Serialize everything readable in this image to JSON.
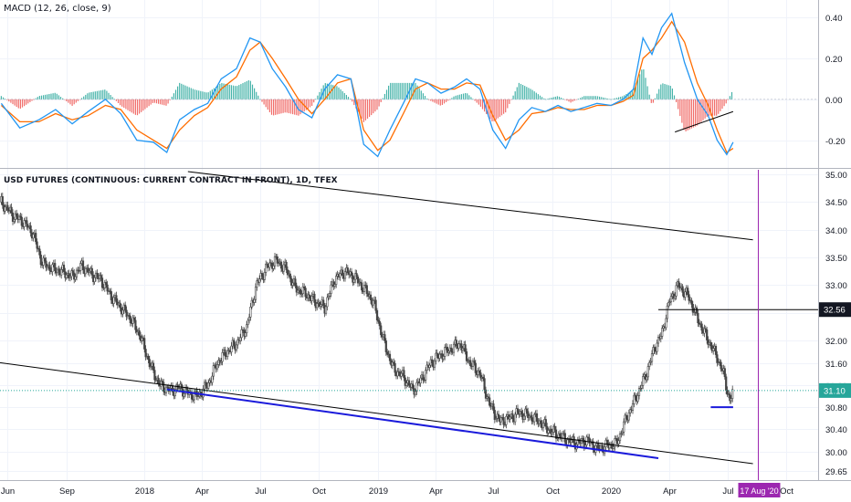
{
  "macd_panel": {
    "title": "MACD (12, 26, close, 9)"
  },
  "price_panel": {
    "title": "USD FUTURES (CONTINUOUS: CURRENT CONTRACT IN FRONT), 1D, TFEX"
  },
  "colors": {
    "macd_line": "#2196f3",
    "signal_line": "#ff6d00",
    "hist_pos": "#26a69a",
    "hist_neg": "#ef5350",
    "candle": "#444444",
    "channel": "#1a1adb",
    "trendline": "#000000",
    "date_marker": "#9c27b0",
    "last_price_line": "#26a69a",
    "last_price_bg": "#26a69a",
    "level_bg": "#131722"
  },
  "chart_data": [
    {
      "type": "line",
      "title": "MACD (12, 26, close, 9)",
      "x_range": [
        "2017-05-20",
        "2020-11-20"
      ],
      "ylim": [
        -0.3,
        0.45
      ],
      "y_ticks": [
        "0.40",
        "0.20",
        "0.00",
        "-0.20"
      ],
      "series": [
        {
          "name": "MACD",
          "x": [
            "2017-05-22",
            "2017-06-20",
            "2017-07-20",
            "2017-08-15",
            "2017-09-10",
            "2017-10-05",
            "2017-11-01",
            "2017-11-25",
            "2017-12-20",
            "2018-01-15",
            "2018-02-05",
            "2018-02-25",
            "2018-03-20",
            "2018-04-10",
            "2018-05-01",
            "2018-05-25",
            "2018-06-15",
            "2018-07-01",
            "2018-07-20",
            "2018-08-10",
            "2018-08-30",
            "2018-09-20",
            "2018-10-10",
            "2018-10-30",
            "2018-11-20",
            "2018-12-10",
            "2019-01-01",
            "2019-01-20",
            "2019-02-10",
            "2019-03-01",
            "2019-03-20",
            "2019-04-10",
            "2019-05-01",
            "2019-05-20",
            "2019-06-10",
            "2019-06-30",
            "2019-07-20",
            "2019-08-10",
            "2019-08-30",
            "2019-09-20",
            "2019-10-10",
            "2019-10-30",
            "2019-11-20",
            "2019-12-10",
            "2020-01-01",
            "2020-01-20",
            "2020-02-05",
            "2020-02-20",
            "2020-03-05",
            "2020-03-20",
            "2020-04-05",
            "2020-04-25",
            "2020-05-15",
            "2020-06-01",
            "2020-06-15",
            "2020-06-30",
            "2020-07-10"
          ],
          "values": [
            -0.02,
            -0.14,
            -0.1,
            -0.05,
            -0.12,
            -0.06,
            0.0,
            -0.07,
            -0.2,
            -0.21,
            -0.26,
            -0.1,
            -0.05,
            -0.02,
            0.1,
            0.15,
            0.3,
            0.28,
            0.15,
            0.06,
            -0.05,
            -0.09,
            0.05,
            0.12,
            0.1,
            -0.22,
            -0.28,
            -0.15,
            -0.02,
            0.1,
            0.08,
            0.03,
            0.06,
            0.1,
            0.05,
            -0.15,
            -0.24,
            -0.1,
            -0.04,
            -0.06,
            -0.03,
            -0.06,
            -0.04,
            -0.02,
            -0.03,
            0.0,
            0.05,
            0.3,
            0.22,
            0.35,
            0.42,
            0.18,
            0.0,
            -0.08,
            -0.2,
            -0.27,
            -0.21
          ]
        },
        {
          "name": "Signal",
          "x": [
            "2017-05-22",
            "2017-06-20",
            "2017-07-20",
            "2017-08-15",
            "2017-09-10",
            "2017-10-05",
            "2017-11-01",
            "2017-11-25",
            "2017-12-20",
            "2018-01-15",
            "2018-02-05",
            "2018-02-25",
            "2018-03-20",
            "2018-04-10",
            "2018-05-01",
            "2018-05-25",
            "2018-06-15",
            "2018-07-01",
            "2018-07-20",
            "2018-08-10",
            "2018-08-30",
            "2018-09-20",
            "2018-10-10",
            "2018-10-30",
            "2018-11-20",
            "2018-12-10",
            "2019-01-01",
            "2019-01-20",
            "2019-02-10",
            "2019-03-01",
            "2019-03-20",
            "2019-04-10",
            "2019-05-01",
            "2019-05-20",
            "2019-06-10",
            "2019-06-30",
            "2019-07-20",
            "2019-08-10",
            "2019-08-30",
            "2019-09-20",
            "2019-10-10",
            "2019-10-30",
            "2019-11-20",
            "2019-12-10",
            "2020-01-01",
            "2020-01-20",
            "2020-02-05",
            "2020-02-20",
            "2020-03-05",
            "2020-03-20",
            "2020-04-05",
            "2020-04-25",
            "2020-05-15",
            "2020-06-01",
            "2020-06-15",
            "2020-06-30",
            "2020-07-10"
          ],
          "values": [
            -0.03,
            -0.11,
            -0.11,
            -0.07,
            -0.1,
            -0.08,
            -0.03,
            -0.05,
            -0.15,
            -0.2,
            -0.24,
            -0.15,
            -0.08,
            -0.04,
            0.05,
            0.11,
            0.24,
            0.28,
            0.2,
            0.1,
            0.0,
            -0.07,
            0.0,
            0.08,
            0.1,
            -0.15,
            -0.25,
            -0.2,
            -0.07,
            0.05,
            0.08,
            0.05,
            0.05,
            0.08,
            0.07,
            -0.08,
            -0.2,
            -0.15,
            -0.07,
            -0.06,
            -0.04,
            -0.05,
            -0.05,
            -0.03,
            -0.03,
            -0.01,
            0.02,
            0.2,
            0.24,
            0.3,
            0.38,
            0.28,
            0.08,
            -0.03,
            -0.15,
            -0.26,
            -0.24
          ]
        }
      ],
      "annotations": [
        {
          "type": "trendline",
          "x": [
            "2020-04-10",
            "2020-07-10"
          ],
          "y": [
            -0.16,
            -0.06
          ]
        }
      ]
    },
    {
      "type": "line",
      "title": "USD FUTURES (CONTINUOUS: CURRENT CONTRACT IN FRONT), 1D, TFEX",
      "x_range": [
        "2017-05-20",
        "2020-11-20"
      ],
      "ylim": [
        29.55,
        35.05
      ],
      "y_ticks": [
        "35.00",
        "34.50",
        "34.00",
        "33.50",
        "33.00",
        "32.50",
        "32.00",
        "31.60",
        "31.20",
        "30.80",
        "30.40",
        "30.00",
        "29.65"
      ],
      "x_ticks": [
        "Jun",
        "Sep",
        "2018",
        "Apr",
        "Jul",
        "Oct",
        "2019",
        "Apr",
        "Jul",
        "Oct",
        "2020",
        "Apr",
        "Jul",
        "Oct"
      ],
      "series": [
        {
          "name": "",
          "x": [
            "2017-05-22",
            "2017-06-10",
            "2017-06-25",
            "2017-07-10",
            "2017-07-25",
            "2017-08-10",
            "2017-08-25",
            "2017-09-10",
            "2017-09-25",
            "2017-10-10",
            "2017-10-25",
            "2017-11-10",
            "2017-11-25",
            "2017-12-10",
            "2017-12-25",
            "2018-01-10",
            "2018-01-25",
            "2018-02-10",
            "2018-02-25",
            "2018-03-10",
            "2018-03-25",
            "2018-04-10",
            "2018-04-25",
            "2018-05-10",
            "2018-05-25",
            "2018-06-10",
            "2018-06-25",
            "2018-07-10",
            "2018-07-25",
            "2018-08-10",
            "2018-08-25",
            "2018-09-10",
            "2018-09-25",
            "2018-10-10",
            "2018-10-25",
            "2018-11-10",
            "2018-11-25",
            "2018-12-10",
            "2018-12-25",
            "2019-01-10",
            "2019-01-25",
            "2019-02-10",
            "2019-02-25",
            "2019-03-10",
            "2019-03-25",
            "2019-04-10",
            "2019-04-25",
            "2019-05-10",
            "2019-05-25",
            "2019-06-10",
            "2019-06-25",
            "2019-07-10",
            "2019-07-25",
            "2019-08-10",
            "2019-08-25",
            "2019-09-10",
            "2019-09-25",
            "2019-10-10",
            "2019-10-25",
            "2019-11-10",
            "2019-11-25",
            "2019-12-10",
            "2019-12-25",
            "2020-01-10",
            "2020-01-25",
            "2020-02-10",
            "2020-02-25",
            "2020-03-10",
            "2020-03-20",
            "2020-04-01",
            "2020-04-15",
            "2020-05-01",
            "2020-05-15",
            "2020-06-01",
            "2020-06-15",
            "2020-06-25",
            "2020-07-05",
            "2020-07-10"
          ],
          "values": [
            34.5,
            34.25,
            34.15,
            33.95,
            33.4,
            33.3,
            33.25,
            33.15,
            33.35,
            33.2,
            33.1,
            32.8,
            32.6,
            32.4,
            32.1,
            31.55,
            31.2,
            31.1,
            31.15,
            31.05,
            31.0,
            31.2,
            31.6,
            31.8,
            31.95,
            32.25,
            33.0,
            33.3,
            33.45,
            33.3,
            32.95,
            32.85,
            32.7,
            32.6,
            33.1,
            33.25,
            33.15,
            32.95,
            32.7,
            32.0,
            31.5,
            31.35,
            31.1,
            31.3,
            31.6,
            31.75,
            31.85,
            31.95,
            31.6,
            31.4,
            30.85,
            30.55,
            30.6,
            30.7,
            30.65,
            30.55,
            30.4,
            30.3,
            30.2,
            30.15,
            30.2,
            30.05,
            30.1,
            30.15,
            30.6,
            31.0,
            31.4,
            31.9,
            32.1,
            32.7,
            33.0,
            32.8,
            32.4,
            32.0,
            31.7,
            31.4,
            30.9,
            31.1
          ]
        }
      ],
      "last_price": "31.10",
      "level_label": "32.56",
      "date_marker_label": "17 Aug '20",
      "annotations": [
        {
          "type": "trendline",
          "x": [
            "2017-04-25",
            "2020-08-10"
          ],
          "y": [
            31.64,
            29.78
          ]
        },
        {
          "type": "trendline",
          "x": [
            "2018-03-10",
            "2020-08-10"
          ],
          "y": [
            35.05,
            33.82
          ]
        },
        {
          "type": "channel",
          "x": [
            "2018-02-05",
            "2020-03-15"
          ],
          "y": [
            31.12,
            29.88
          ]
        },
        {
          "type": "channel",
          "x": [
            "2020-06-05",
            "2020-07-10"
          ],
          "y": [
            30.8,
            30.8
          ]
        }
      ]
    }
  ]
}
